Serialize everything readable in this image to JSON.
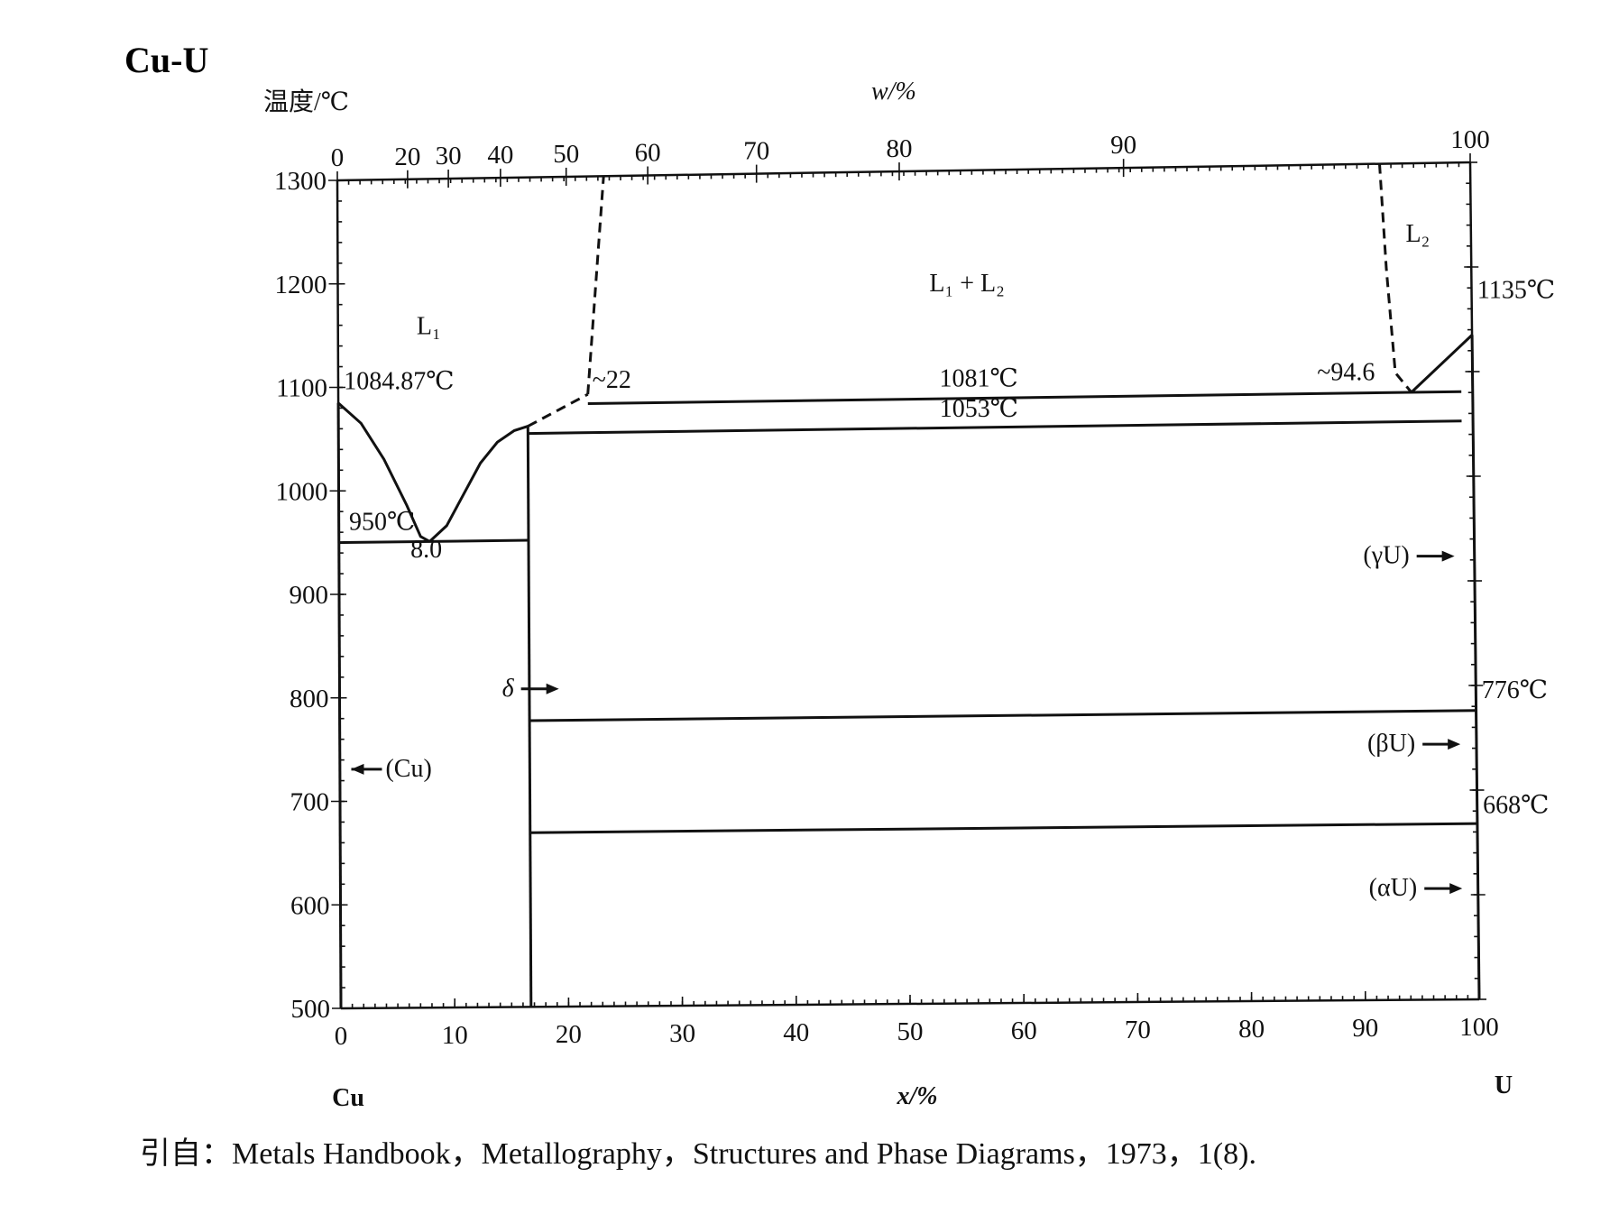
{
  "chart_data": {
    "type": "phase-diagram",
    "title": "Cu-U",
    "ylabel": "温度/℃",
    "xlabel": "x/%",
    "top_xlabel": "w/%",
    "x_left_element": "Cu",
    "x_right_element": "U",
    "xlim": [
      0,
      100
    ],
    "ylim": [
      500,
      1300
    ],
    "x_ticks": [
      0,
      10,
      20,
      30,
      40,
      50,
      60,
      70,
      80,
      90,
      100
    ],
    "y_ticks": [
      500,
      600,
      700,
      800,
      900,
      1000,
      1100,
      1200,
      1300
    ],
    "top_ticks": [
      {
        "label": "0",
        "x_at": 0
      },
      {
        "label": "20",
        "x_at": 6.2
      },
      {
        "label": "30",
        "x_at": 9.8
      },
      {
        "label": "40",
        "x_at": 14.4
      },
      {
        "label": "50",
        "x_at": 20.2
      },
      {
        "label": "60",
        "x_at": 27.4
      },
      {
        "label": "70",
        "x_at": 37.0
      },
      {
        "label": "80",
        "x_at": 49.6
      },
      {
        "label": "90",
        "x_at": 69.4
      },
      {
        "label": "100",
        "x_at": 100
      }
    ],
    "curves": [
      {
        "name": "Cu liquidus",
        "style": "solid",
        "points": [
          [
            0,
            1084.87
          ],
          [
            2,
            1065
          ],
          [
            4,
            1030
          ],
          [
            6,
            985
          ],
          [
            7.2,
            955
          ],
          [
            8.0,
            950
          ]
        ]
      },
      {
        "name": "liquidus to delta",
        "style": "solid",
        "points": [
          [
            8.0,
            950
          ],
          [
            9.5,
            965
          ],
          [
            11,
            995
          ],
          [
            12.5,
            1025
          ],
          [
            14,
            1045
          ],
          [
            15.5,
            1056
          ],
          [
            16.7,
            1060
          ]
        ]
      },
      {
        "name": "eutectic 950",
        "style": "solid",
        "points": [
          [
            0,
            950
          ],
          [
            16.7,
            950
          ]
        ]
      },
      {
        "name": "delta left",
        "style": "solid",
        "points": [
          [
            16.7,
            1060
          ],
          [
            16.7,
            500
          ]
        ]
      },
      {
        "name": "monotectic to 22",
        "style": "dashed",
        "points": [
          [
            16.7,
            1060
          ],
          [
            22,
            1090
          ]
        ]
      },
      {
        "name": "L1 miscibility boundary",
        "style": "dashed",
        "points": [
          [
            22,
            1090
          ],
          [
            23.5,
            1300
          ]
        ]
      },
      {
        "name": "L2 miscibility boundary",
        "style": "dashed",
        "points": [
          [
            92,
            1300
          ],
          [
            92.5,
            1200
          ],
          [
            93.2,
            1100
          ],
          [
            94.6,
            1081
          ]
        ]
      },
      {
        "name": "monotectic 1081",
        "style": "solid",
        "points": [
          [
            22,
            1081
          ],
          [
            99,
            1081
          ]
        ]
      },
      {
        "name": "eutectic 1053",
        "style": "solid",
        "points": [
          [
            16.7,
            1053
          ],
          [
            99,
            1053
          ]
        ]
      },
      {
        "name": "U liquidus",
        "style": "solid",
        "points": [
          [
            94.6,
            1081
          ],
          [
            100,
            1135
          ]
        ]
      },
      {
        "name": "gamma-beta 776",
        "style": "solid",
        "points": [
          [
            16.7,
            776
          ],
          [
            100,
            776
          ]
        ]
      },
      {
        "name": "beta-alpha 668",
        "style": "solid",
        "points": [
          [
            16.7,
            668
          ],
          [
            100,
            668
          ]
        ]
      },
      {
        "name": "Cu solvus",
        "style": "solid",
        "points": [
          [
            0,
            1084.87
          ],
          [
            0,
            500
          ]
        ]
      },
      {
        "name": "U solvus",
        "style": "solid",
        "points": [
          [
            100,
            1135
          ],
          [
            100,
            500
          ]
        ]
      }
    ],
    "annotations": [
      {
        "text": "1084.87℃",
        "x": 0.5,
        "y": 1098
      },
      {
        "text": "950℃",
        "x": 0.9,
        "y": 962
      },
      {
        "text": "8.0",
        "x": 6.3,
        "y": 935
      },
      {
        "text": "~22",
        "x": 22.4,
        "y": 1096
      },
      {
        "text": "1081℃",
        "x": 53,
        "y": 1093
      },
      {
        "text": "1053℃",
        "x": 53,
        "y": 1064
      },
      {
        "text": "~94.6",
        "x": 86.3,
        "y": 1094
      },
      {
        "text": "1135℃",
        "x": 100.5,
        "y": 1170
      },
      {
        "text": "776℃",
        "x": 100.5,
        "y": 788
      },
      {
        "text": "668℃",
        "x": 100.5,
        "y": 678
      }
    ],
    "regions": [
      {
        "text": "L₁",
        "x": 8.0,
        "y": 1150
      },
      {
        "text": "L₁ + L₂",
        "x": 55.5,
        "y": 1184
      },
      {
        "text": "L₂",
        "x": 95.3,
        "y": 1225
      }
    ],
    "phase_arrows": [
      {
        "text": "(Cu)",
        "direction": "left",
        "x": 1.0,
        "y": 724
      },
      {
        "text": "δ",
        "direction": "right",
        "x": 14.3,
        "y": 800
      },
      {
        "text": "(γU)",
        "direction": "right",
        "x": 90.2,
        "y": 918
      },
      {
        "text": "(βU)",
        "direction": "right",
        "x": 90.4,
        "y": 738
      },
      {
        "text": "(αU)",
        "direction": "right",
        "x": 90.4,
        "y": 600
      }
    ],
    "source": "引自：Metals Handbook，Metallography，Structures and Phase Diagrams，1973，1(8)."
  }
}
